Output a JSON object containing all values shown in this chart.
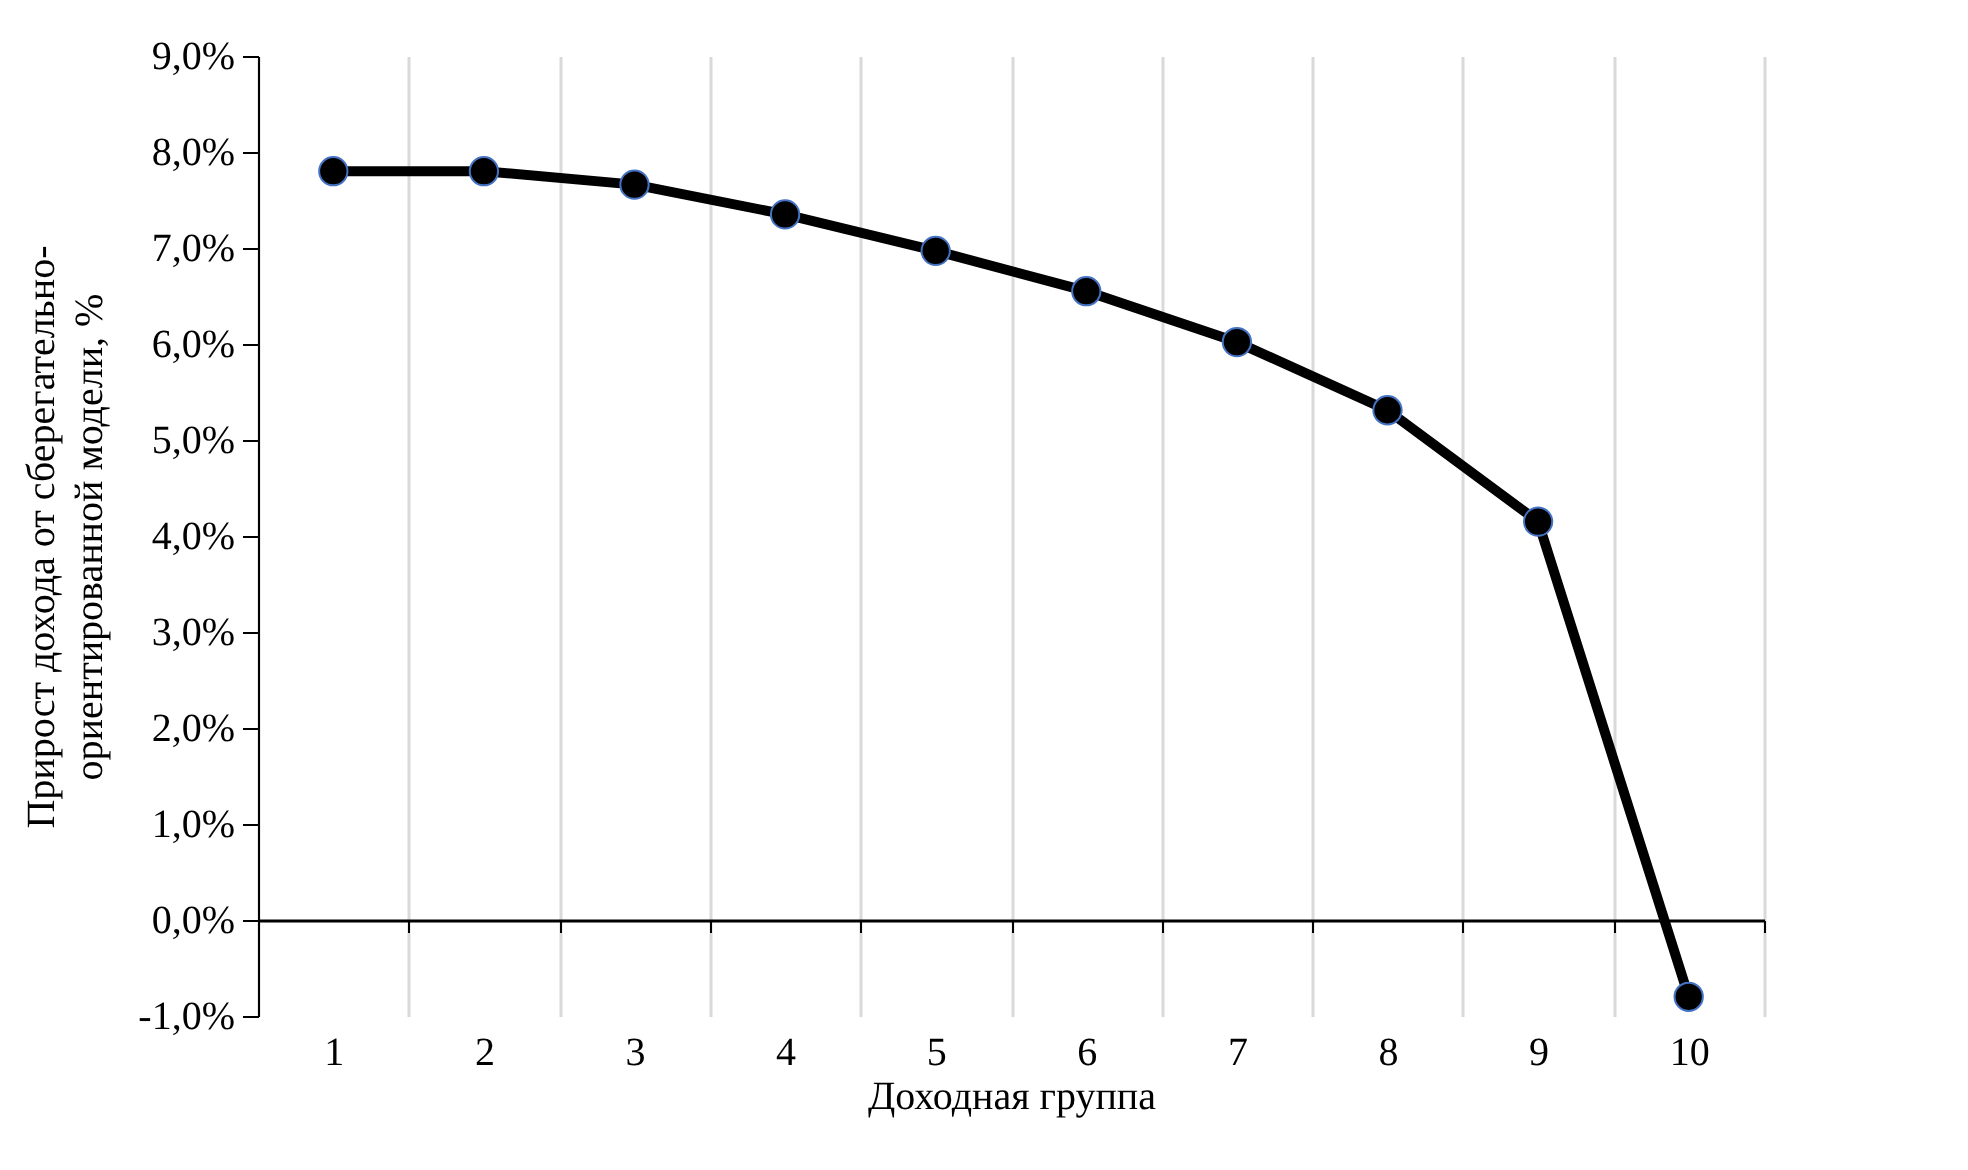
{
  "chart_data": {
    "type": "line",
    "xlabel": "Доходная группа",
    "ylabel": "Прирост дохода от сберегательно-\nориентированной модели, %",
    "categories": [
      "1",
      "2",
      "3",
      "4",
      "5",
      "6",
      "7",
      "8",
      "9",
      "10"
    ],
    "series": [
      {
        "color": "#000000",
        "values": [
          7.8,
          7.8,
          7.66,
          7.35,
          6.97,
          6.55,
          6.02,
          5.31,
          4.15,
          -0.8
        ]
      }
    ],
    "ylim": [
      -1,
      9
    ],
    "yticks": [
      {
        "value": -1,
        "label": "-1,0%"
      },
      {
        "value": 0,
        "label": "0,0%"
      },
      {
        "value": 1,
        "label": "1,0%"
      },
      {
        "value": 2,
        "label": "2,0%"
      },
      {
        "value": 3,
        "label": "3,0%"
      },
      {
        "value": 4,
        "label": "4,0%"
      },
      {
        "value": 5,
        "label": "5,0%"
      },
      {
        "value": 6,
        "label": "6,0%"
      },
      {
        "value": 7,
        "label": "7,0%"
      },
      {
        "value": 8,
        "label": "8,0%"
      },
      {
        "value": 9,
        "label": "9,0%"
      }
    ],
    "grid": "x",
    "marker": "circle",
    "line_style": "solid",
    "legend": false
  }
}
